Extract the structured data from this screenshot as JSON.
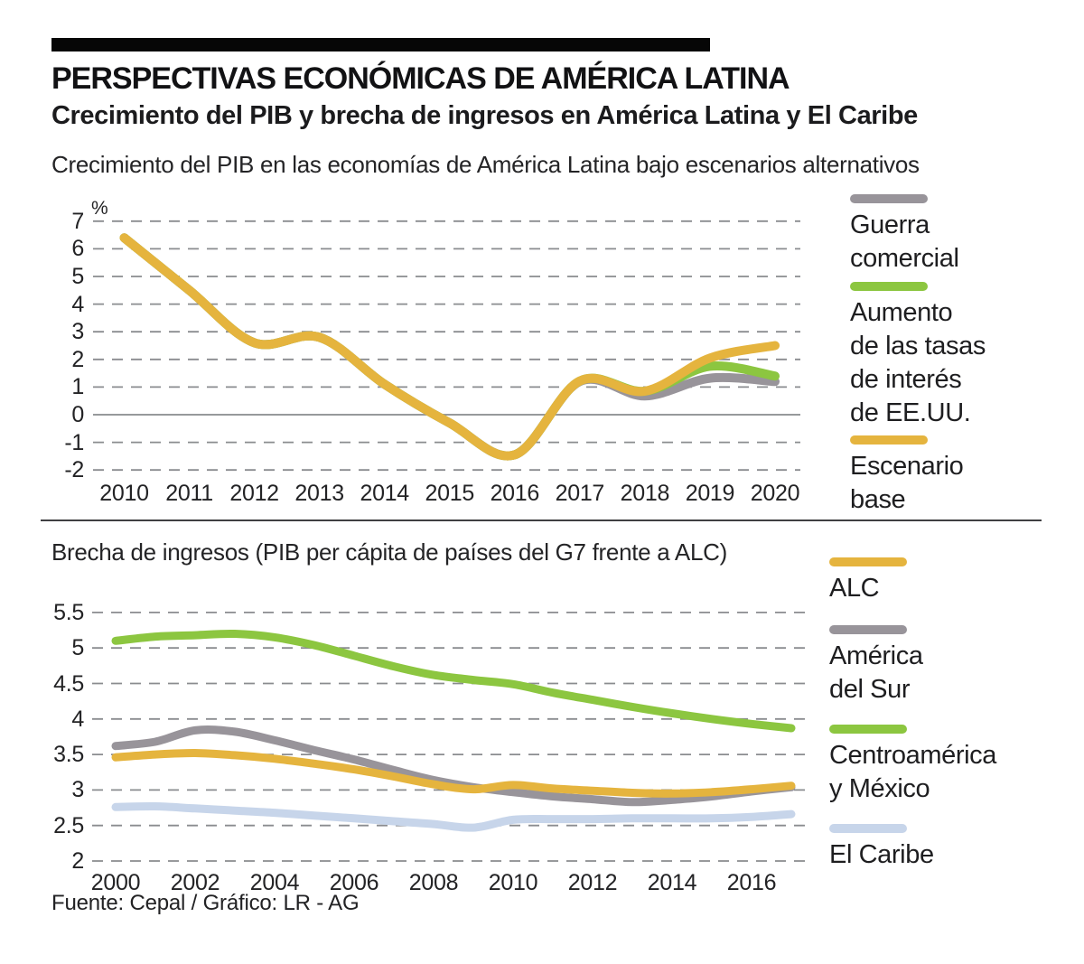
{
  "header": {
    "title": "PERSPECTIVAS ECONÓMICAS DE AMÉRICA LATINA",
    "subtitle": "Crecimiento del PIB y brecha de ingresos en América Latina y El Caribe"
  },
  "footer": {
    "source": "Fuente: Cepal / Gráfico: LR - AG"
  },
  "colors": {
    "base_yellow": "#E5B43E",
    "green": "#8CC640",
    "gray": "#98949A",
    "light_blue": "#C7D5EA",
    "grid": "#8A8C8F",
    "zero_line": "#97999B"
  },
  "chart_data": [
    {
      "type": "line",
      "title": "Crecimiento del PIB en las economías de América Latina bajo escenarios alternativos",
      "unit": "%",
      "x": [
        2010,
        2011,
        2012,
        2013,
        2014,
        2015,
        2016,
        2017,
        2018,
        2019,
        2020
      ],
      "xticks": [
        2010,
        2011,
        2012,
        2013,
        2014,
        2015,
        2016,
        2017,
        2018,
        2019,
        2020
      ],
      "yticks": [
        7,
        6,
        5,
        4,
        3,
        2,
        1,
        0,
        -1,
        -2
      ],
      "ylim": [
        -2,
        7
      ],
      "grid": "horizontal dashed, solid line at zero",
      "legend_position": "right",
      "series": [
        {
          "name": "Guerra comercial",
          "legend_label": "Guerra\ncomercial",
          "color": "#98949A",
          "values": [
            6.4,
            4.5,
            2.6,
            2.8,
            1.1,
            -0.3,
            -1.45,
            1.2,
            0.68,
            1.32,
            1.2
          ]
        },
        {
          "name": "Aumento de las tasas de interés de EE.UU.",
          "legend_label": "Aumento\nde las tasas\nde interés\nde EE.UU.",
          "color": "#8CC640",
          "values": [
            6.4,
            4.5,
            2.6,
            2.8,
            1.1,
            -0.3,
            -1.45,
            1.22,
            0.85,
            1.75,
            1.4
          ]
        },
        {
          "name": "Escenario base",
          "legend_label": "Escenario\nbase",
          "color": "#E5B43E",
          "values": [
            6.4,
            4.5,
            2.6,
            2.8,
            1.1,
            -0.3,
            -1.45,
            1.22,
            0.85,
            2.05,
            2.5
          ]
        }
      ]
    },
    {
      "type": "line",
      "title": "Brecha de ingresos (PIB per cápita de países del G7 frente a ALC)",
      "unit": "",
      "x": [
        2000,
        2001,
        2002,
        2003,
        2004,
        2005,
        2006,
        2007,
        2008,
        2009,
        2010,
        2011,
        2012,
        2013,
        2014,
        2015,
        2016,
        2017
      ],
      "xticks": [
        2000,
        2002,
        2004,
        2006,
        2008,
        2010,
        2012,
        2014,
        2016
      ],
      "yticks": [
        5.5,
        5,
        4.5,
        4,
        3.5,
        3,
        2.5,
        2
      ],
      "ylim": [
        2,
        5.5
      ],
      "grid": "horizontal dashed",
      "legend_position": "right",
      "series": [
        {
          "name": "ALC",
          "legend_label": "ALC",
          "color": "#E5B43E",
          "values": [
            3.46,
            3.5,
            3.52,
            3.49,
            3.44,
            3.37,
            3.29,
            3.19,
            3.08,
            3.01,
            3.07,
            3.02,
            2.99,
            2.96,
            2.95,
            2.97,
            3.01,
            3.06
          ]
        },
        {
          "name": "América del Sur",
          "legend_label": "América\ndel Sur",
          "color": "#98949A",
          "values": [
            3.62,
            3.68,
            3.84,
            3.82,
            3.7,
            3.56,
            3.43,
            3.28,
            3.14,
            3.04,
            2.97,
            2.91,
            2.87,
            2.83,
            2.86,
            2.91,
            2.98,
            3.04
          ]
        },
        {
          "name": "Centroamérica y México",
          "legend_label": "Centroamérica\ny México",
          "color": "#8CC640",
          "values": [
            5.1,
            5.16,
            5.18,
            5.2,
            5.15,
            5.04,
            4.89,
            4.74,
            4.62,
            4.55,
            4.49,
            4.37,
            4.27,
            4.17,
            4.08,
            4.0,
            3.93,
            3.87
          ]
        },
        {
          "name": "El Caribe",
          "legend_label": "El Caribe",
          "color": "#C7D5EA",
          "values": [
            2.76,
            2.77,
            2.74,
            2.71,
            2.68,
            2.64,
            2.6,
            2.56,
            2.52,
            2.47,
            2.58,
            2.59,
            2.59,
            2.6,
            2.6,
            2.6,
            2.62,
            2.66
          ]
        }
      ]
    }
  ]
}
